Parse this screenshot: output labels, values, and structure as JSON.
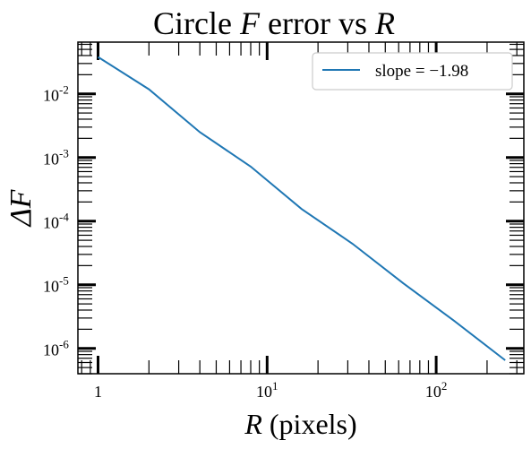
{
  "chart_data": {
    "type": "line",
    "title": "Circle F error vs R",
    "title_parts": [
      "Circle ",
      "F",
      " error vs ",
      "R"
    ],
    "xlabel": "R (pixels)",
    "xlabel_parts": [
      "R",
      " (pixels)"
    ],
    "ylabel": "ΔF",
    "x_scale": "log",
    "y_scale": "log",
    "xlim": [
      0.76,
      330
    ],
    "ylim": [
      4e-07,
      0.065
    ],
    "x_ticks": [
      {
        "value": 1,
        "base": "1",
        "exp": ""
      },
      {
        "value": 10,
        "base": "10",
        "exp": "1"
      },
      {
        "value": 100,
        "base": "10",
        "exp": "2"
      }
    ],
    "y_ticks": [
      {
        "value": 0.01,
        "base": "10",
        "exp": "-2"
      },
      {
        "value": 0.001,
        "base": "10",
        "exp": "-3"
      },
      {
        "value": 0.0001,
        "base": "10",
        "exp": "-4"
      },
      {
        "value": 1e-05,
        "base": "10",
        "exp": "-5"
      },
      {
        "value": 1e-06,
        "base": "10",
        "exp": "-6"
      }
    ],
    "grid": false,
    "legend_position": "top-right",
    "series": [
      {
        "name": "slope = −1.98",
        "color": "#1f77b4",
        "x": [
          1,
          2,
          4,
          8,
          16,
          32,
          64,
          128,
          256
        ],
        "y": [
          0.038,
          0.0118,
          0.0025,
          0.00072,
          0.000155,
          4.4e-05,
          1.05e-05,
          2.7e-06,
          6.5e-07
        ]
      }
    ]
  }
}
